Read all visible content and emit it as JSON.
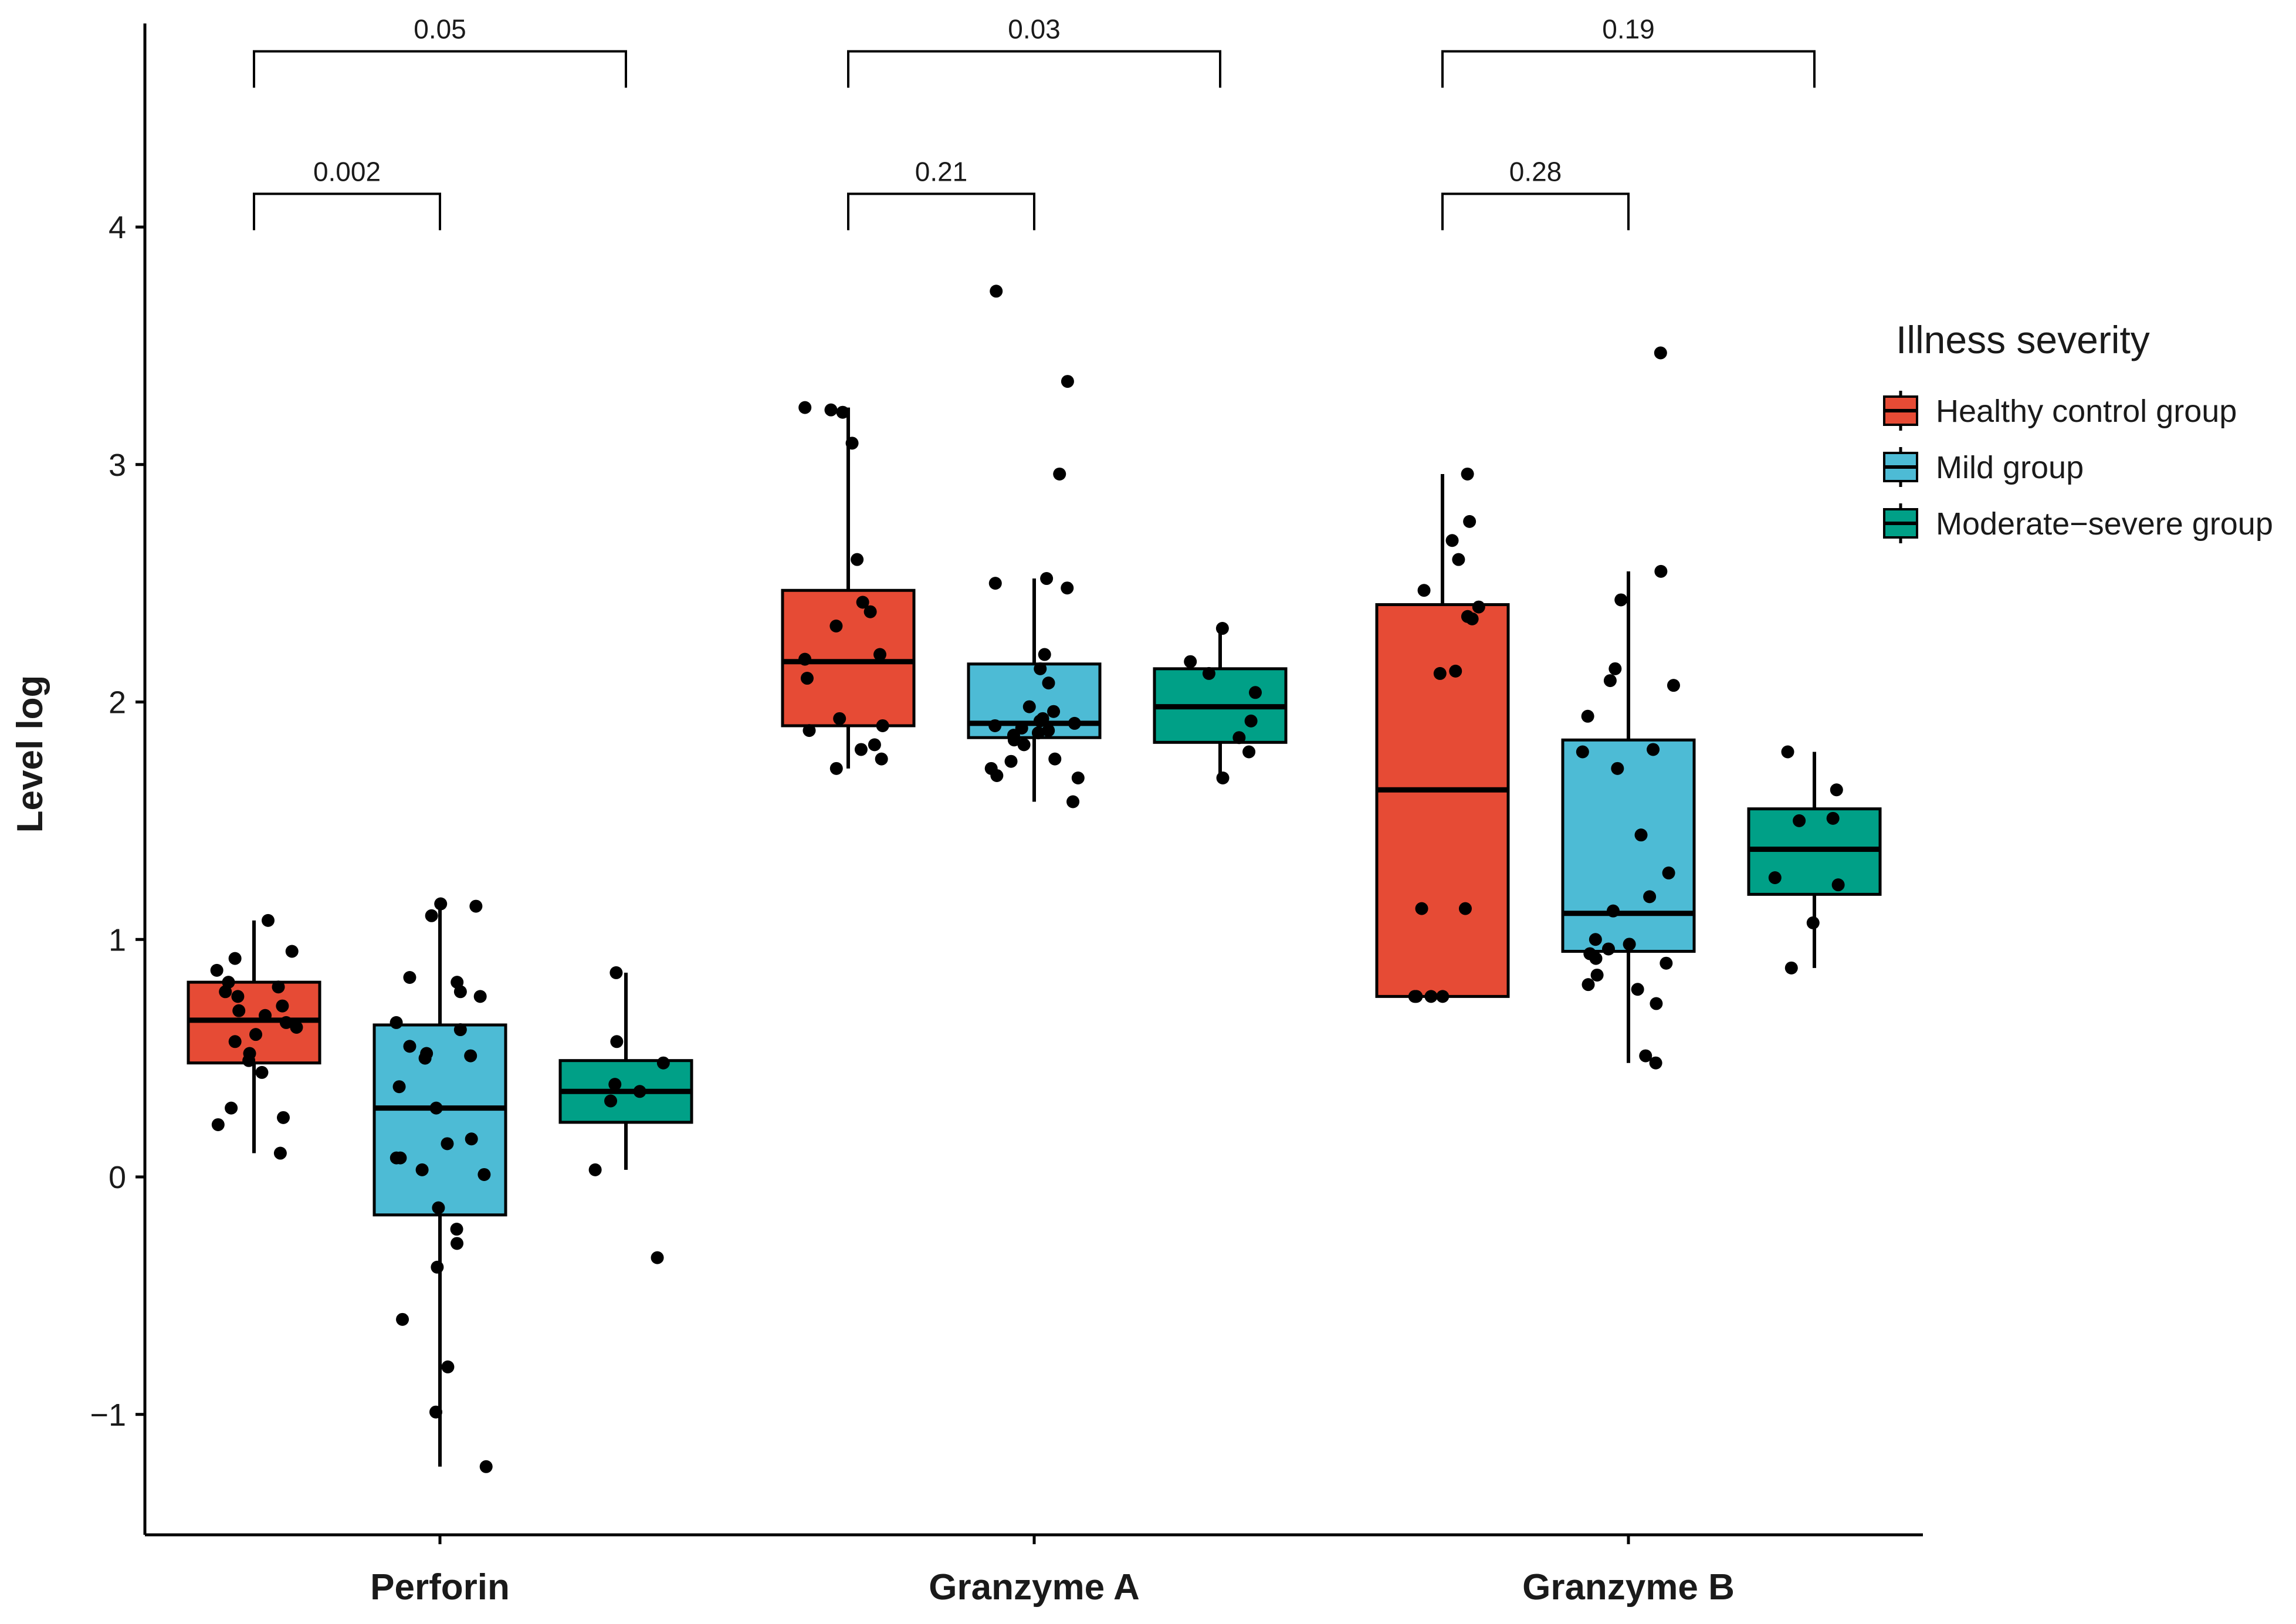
{
  "chart_data": {
    "type": "box",
    "title": "",
    "xlabel": "",
    "ylabel": "Level log",
    "ylim": [
      -1.5,
      4.85
    ],
    "yticks": [
      -1,
      0,
      1,
      2,
      3,
      4
    ],
    "ytick_labels": [
      "−1",
      "0",
      "1",
      "2",
      "3",
      "4"
    ],
    "grid": false,
    "categories": [
      "Perforin",
      "Granzyme A",
      "Granzyme B"
    ],
    "legend": {
      "title": "Illness severity",
      "placement": "right",
      "entries": [
        {
          "name": "Healthy control group",
          "color": "#E64B35"
        },
        {
          "name": "Mild group",
          "color": "#4DBBD5"
        },
        {
          "name": "Moderate−severe group",
          "color": "#00A087"
        }
      ]
    },
    "series": [
      {
        "name": "Healthy control group",
        "color": "#E64B35",
        "boxes": [
          {
            "category": "Perforin",
            "q1": 0.48,
            "median": 0.66,
            "q3": 0.82,
            "whisker_low": 0.1,
            "whisker_high": 1.08,
            "points": [
              1.08,
              0.95,
              0.92,
              0.87,
              0.82,
              0.8,
              0.78,
              0.76,
              0.72,
              0.7,
              0.68,
              0.65,
              0.63,
              0.6,
              0.57,
              0.52,
              0.49,
              0.44,
              0.29,
              0.25,
              0.22,
              0.1
            ]
          },
          {
            "category": "Granzyme A",
            "q1": 1.9,
            "median": 2.17,
            "q3": 2.47,
            "whisker_low": 1.72,
            "whisker_high": 3.24,
            "points": [
              3.24,
              3.23,
              3.22,
              3.09,
              2.6,
              2.42,
              2.38,
              2.32,
              2.2,
              2.18,
              2.1,
              1.93,
              1.9,
              1.88,
              1.82,
              1.8,
              1.76,
              1.72
            ]
          },
          {
            "category": "Granzyme B",
            "q1": 0.76,
            "median": 1.63,
            "q3": 2.41,
            "whisker_low": 0.76,
            "whisker_high": 2.96,
            "points": [
              2.96,
              2.76,
              2.68,
              2.6,
              2.47,
              2.4,
              2.36,
              2.35,
              2.13,
              2.12,
              1.13,
              1.13,
              0.76,
              0.76,
              0.76,
              0.76
            ]
          }
        ]
      },
      {
        "name": "Mild group",
        "color": "#4DBBD5",
        "boxes": [
          {
            "category": "Perforin",
            "q1": -0.16,
            "median": 0.29,
            "q3": 0.64,
            "whisker_low": -1.22,
            "whisker_high": 1.15,
            "points": [
              1.15,
              1.14,
              1.1,
              0.84,
              0.82,
              0.78,
              0.76,
              0.65,
              0.62,
              0.55,
              0.52,
              0.51,
              0.5,
              0.38,
              0.29,
              0.16,
              0.14,
              0.08,
              0.08,
              0.03,
              0.01,
              -0.13,
              -0.22,
              -0.28,
              -0.38,
              -0.6,
              -0.8,
              -0.99,
              -1.22
            ]
          },
          {
            "category": "Granzyme A",
            "q1": 1.85,
            "median": 1.91,
            "q3": 2.16,
            "whisker_low": 1.58,
            "whisker_high": 2.52,
            "points": [
              3.73,
              3.35,
              2.96,
              2.52,
              2.5,
              2.48,
              2.2,
              2.14,
              2.08,
              1.98,
              1.96,
              1.93,
              1.92,
              1.91,
              1.9,
              1.89,
              1.88,
              1.87,
              1.86,
              1.84,
              1.82,
              1.76,
              1.75,
              1.72,
              1.69,
              1.68,
              1.58
            ]
          },
          {
            "category": "Granzyme B",
            "q1": 0.95,
            "median": 1.11,
            "q3": 1.84,
            "whisker_low": 0.48,
            "whisker_high": 2.55,
            "points": [
              3.47,
              2.55,
              2.43,
              2.14,
              2.09,
              2.07,
              1.94,
              1.8,
              1.79,
              1.72,
              1.44,
              1.28,
              1.18,
              1.12,
              1.0,
              0.98,
              0.96,
              0.94,
              0.92,
              0.9,
              0.85,
              0.81,
              0.79,
              0.73,
              0.51,
              0.48
            ]
          }
        ]
      },
      {
        "name": "Moderate−severe group",
        "color": "#00A087",
        "boxes": [
          {
            "category": "Perforin",
            "q1": 0.23,
            "median": 0.36,
            "q3": 0.49,
            "whisker_low": 0.03,
            "whisker_high": 0.86,
            "points": [
              0.86,
              0.57,
              0.48,
              0.39,
              0.36,
              0.32,
              0.03,
              -0.34
            ]
          },
          {
            "category": "Granzyme A",
            "q1": 1.83,
            "median": 1.98,
            "q3": 2.14,
            "whisker_low": 1.68,
            "whisker_high": 2.31,
            "points": [
              2.31,
              2.17,
              2.12,
              2.04,
              1.92,
              1.85,
              1.79,
              1.68
            ]
          },
          {
            "category": "Granzyme B",
            "q1": 1.19,
            "median": 1.38,
            "q3": 1.55,
            "whisker_low": 0.88,
            "whisker_high": 1.79,
            "points": [
              1.79,
              1.63,
              1.51,
              1.5,
              1.26,
              1.23,
              1.07,
              0.88
            ]
          }
        ]
      }
    ],
    "comparisons": [
      {
        "category": "Perforin",
        "from": "Healthy control group",
        "to": "Moderate−severe group",
        "p_label": "0.05",
        "level": 2
      },
      {
        "category": "Perforin",
        "from": "Healthy control group",
        "to": "Mild group",
        "p_label": "0.002",
        "level": 1
      },
      {
        "category": "Granzyme A",
        "from": "Healthy control group",
        "to": "Moderate−severe group",
        "p_label": "0.03",
        "level": 2
      },
      {
        "category": "Granzyme A",
        "from": "Healthy control group",
        "to": "Mild group",
        "p_label": "0.21",
        "level": 1
      },
      {
        "category": "Granzyme B",
        "from": "Healthy control group",
        "to": "Moderate−severe group",
        "p_label": "0.19",
        "level": 2
      },
      {
        "category": "Granzyme B",
        "from": "Healthy control group",
        "to": "Mild group",
        "p_label": "0.28",
        "level": 1
      }
    ]
  }
}
